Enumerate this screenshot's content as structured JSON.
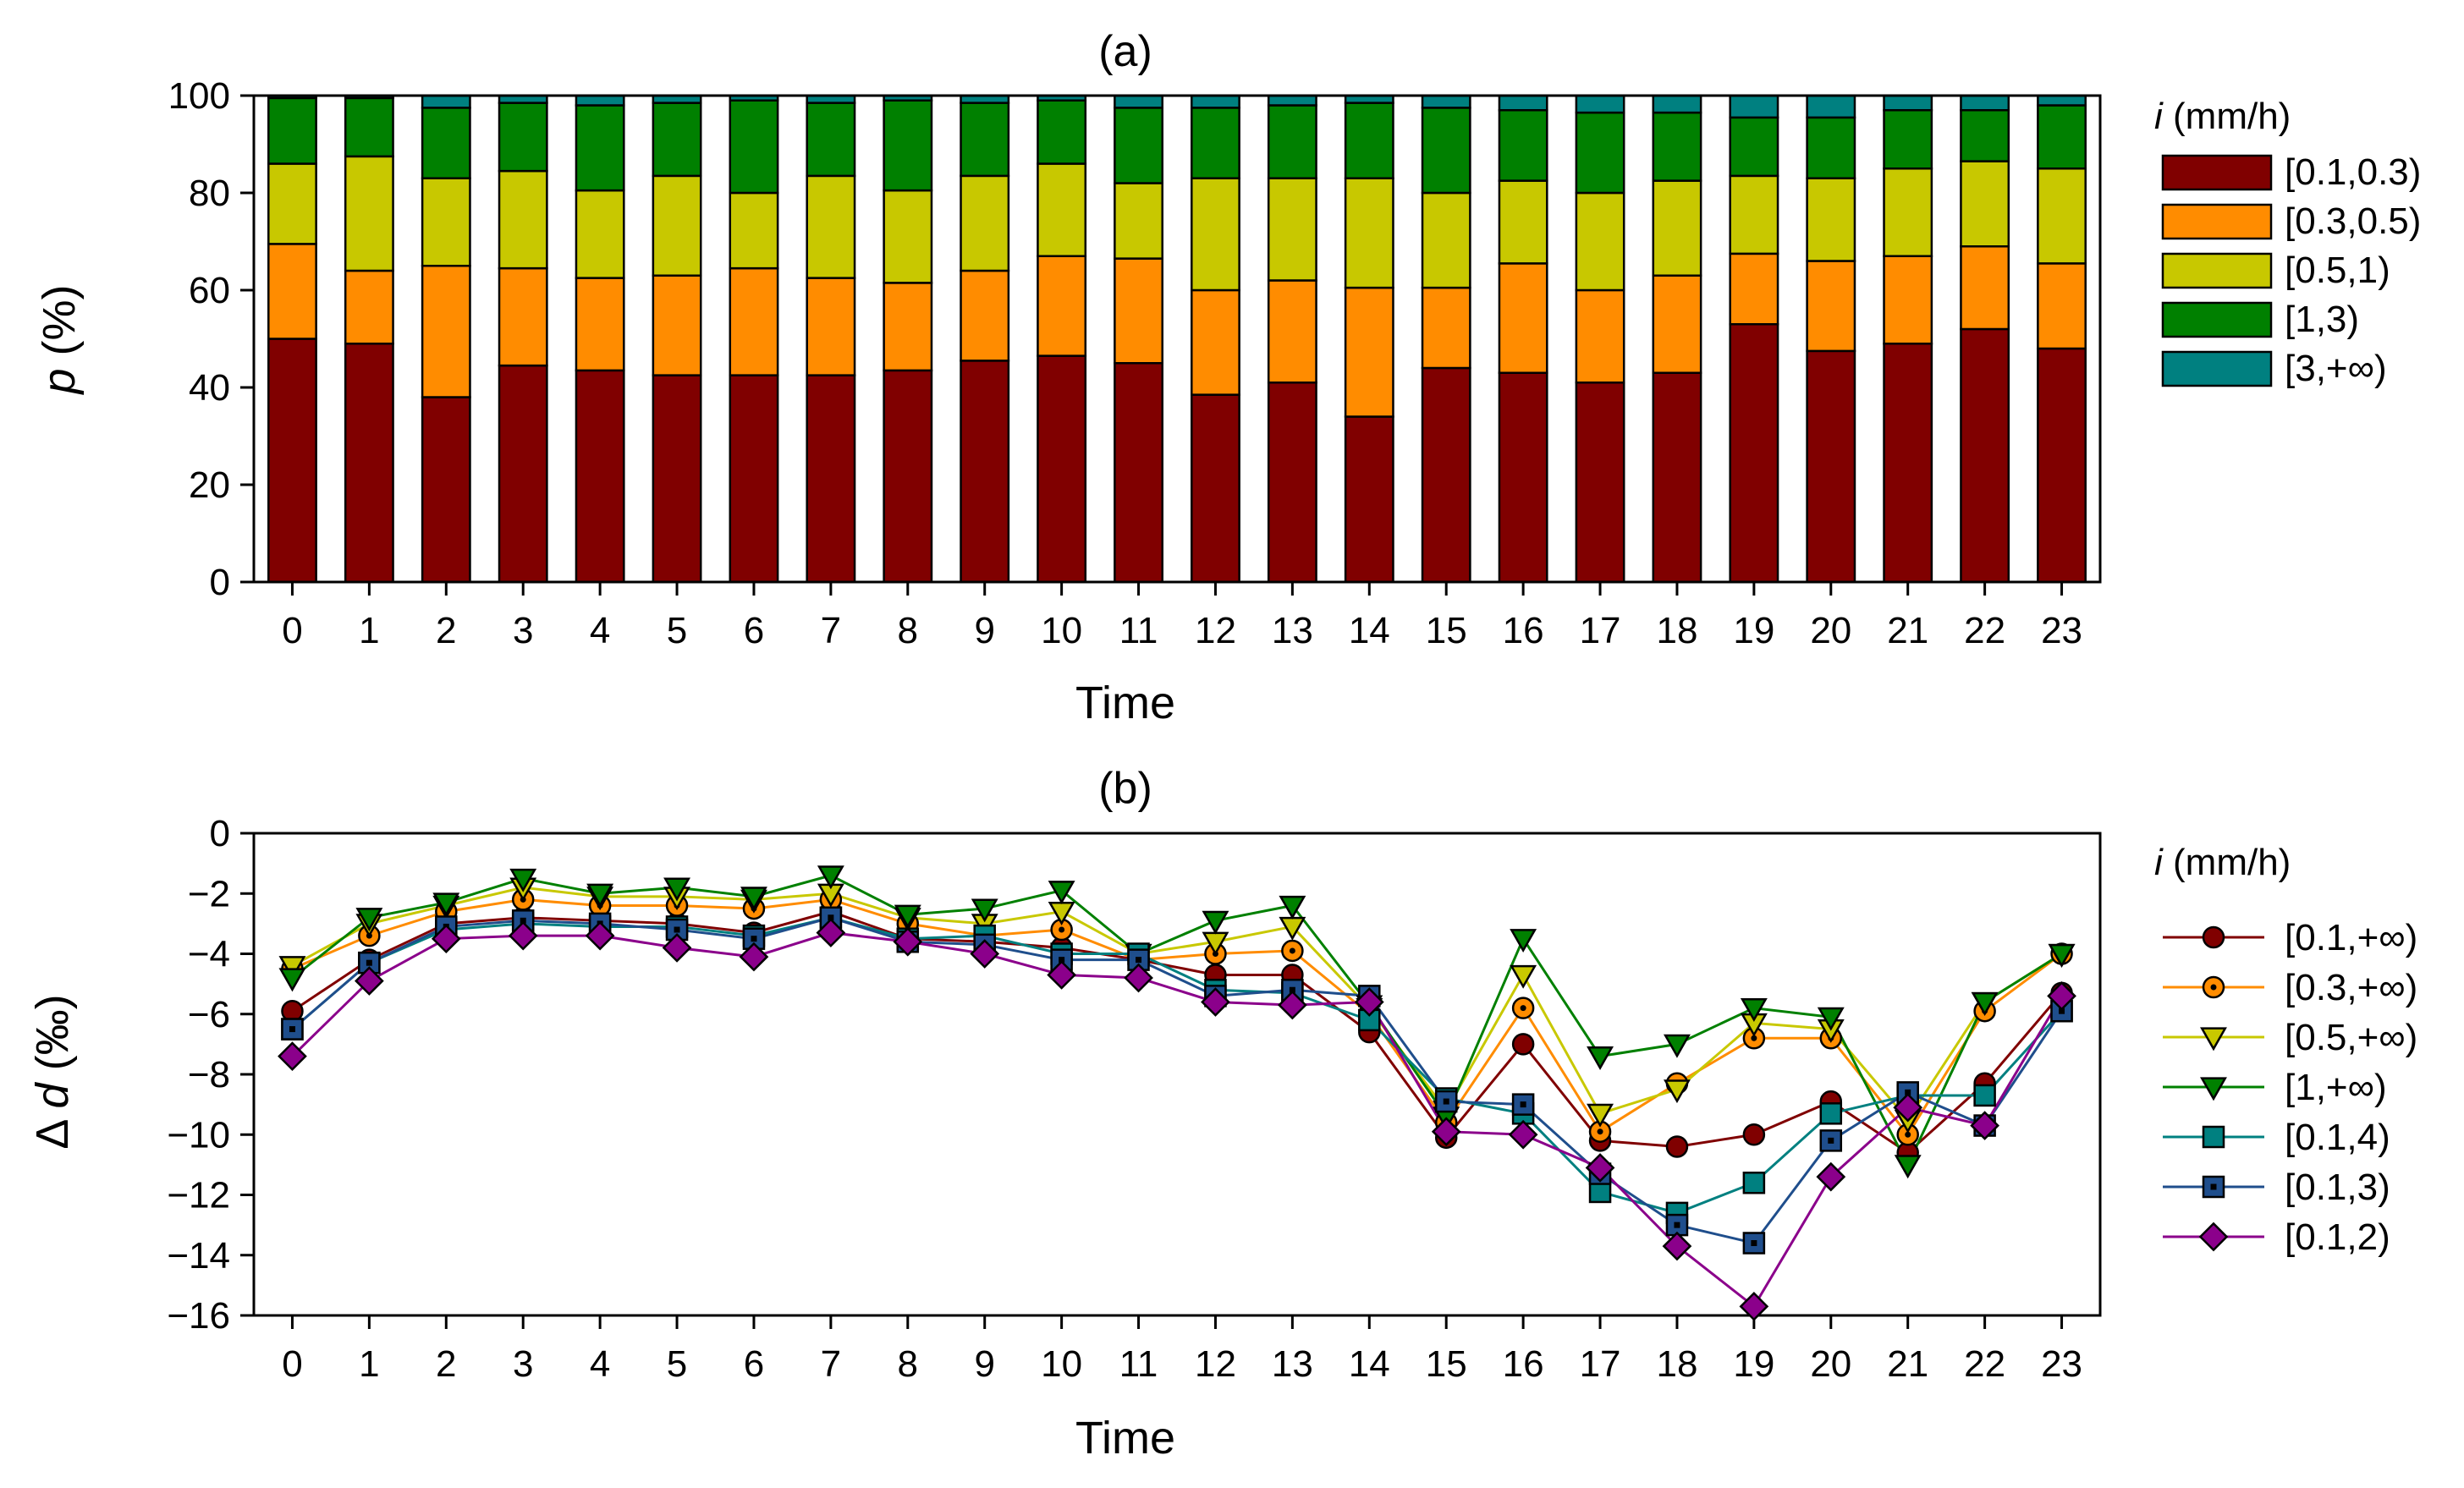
{
  "chart_data": [
    {
      "type": "bar",
      "stacked": true,
      "title": "(a)",
      "xlabel": "Time",
      "ylabel_italic": "p",
      "ylabel_unit": "(%)",
      "ylim": [
        0,
        100
      ],
      "yticks": [
        0,
        20,
        40,
        60,
        80,
        100
      ],
      "categories": [
        "0",
        "1",
        "2",
        "3",
        "4",
        "5",
        "6",
        "7",
        "8",
        "9",
        "10",
        "11",
        "12",
        "13",
        "14",
        "15",
        "16",
        "17",
        "18",
        "19",
        "20",
        "21",
        "22",
        "23"
      ],
      "legend_title_italic": "i",
      "legend_title_unit": "(mm/h)",
      "legend_position": "right",
      "series": [
        {
          "name": "[0.1,0.3)",
          "color": "#800000",
          "values": [
            50,
            49,
            38,
            44.5,
            43.5,
            42.5,
            42.5,
            42.5,
            43.5,
            45.5,
            46.5,
            45,
            38.5,
            41,
            34,
            44,
            43,
            41,
            43,
            53,
            47.5,
            49,
            52,
            48
          ]
        },
        {
          "name": "[0.3,0.5)",
          "color": "#ff8c00",
          "values": [
            19.5,
            15,
            27,
            20,
            19,
            20.5,
            22,
            20,
            18,
            18.5,
            20.5,
            21.5,
            21.5,
            21,
            26.5,
            16.5,
            22.5,
            19,
            20,
            14.5,
            18.5,
            18,
            17,
            17.5
          ]
        },
        {
          "name": "[0.5,1)",
          "color": "#c8c800",
          "values": [
            16.5,
            23.5,
            18,
            20,
            18,
            20.5,
            15.5,
            21,
            19,
            19.5,
            19,
            15.5,
            23,
            21,
            22.5,
            19.5,
            17,
            20,
            19.5,
            16,
            17,
            18,
            17.5,
            19.5
          ]
        },
        {
          "name": "[1,3)",
          "color": "#008000",
          "values": [
            13.5,
            12,
            14.5,
            14,
            17.5,
            15,
            19,
            15,
            18.5,
            15,
            13,
            15.5,
            14.5,
            15,
            15.5,
            17.5,
            14.5,
            16.5,
            14,
            12,
            12.5,
            12,
            10.5,
            13
          ]
        },
        {
          "name": "[3,+∞)",
          "color": "#008080",
          "values": [
            0.5,
            0.5,
            2.5,
            1.5,
            2,
            1.5,
            1,
            1.5,
            1,
            1.5,
            1,
            2.5,
            2.5,
            2,
            1.5,
            2.5,
            3,
            3.5,
            3.5,
            4.5,
            4.5,
            3,
            3,
            2
          ]
        }
      ]
    },
    {
      "type": "line",
      "title": "(b)",
      "xlabel": "Time",
      "ylabel_prefix": "Δ",
      "ylabel_italic": "d",
      "ylabel_unit": "(‰)",
      "ylim": [
        -16,
        0
      ],
      "yticks": [
        -16,
        -14,
        -12,
        -10,
        -8,
        -6,
        -4,
        -2,
        0
      ],
      "x": [
        "0",
        "1",
        "2",
        "3",
        "4",
        "5",
        "6",
        "7",
        "8",
        "9",
        "10",
        "11",
        "12",
        "13",
        "14",
        "15",
        "16",
        "17",
        "18",
        "19",
        "20",
        "21",
        "22",
        "23"
      ],
      "legend_title_italic": "i",
      "legend_title_unit": "(mm/h)",
      "legend_position": "right",
      "series": [
        {
          "name": "[0.1,+∞)",
          "color": "#800000",
          "marker": "circle",
          "values": [
            -5.9,
            -4.2,
            -3.0,
            -2.8,
            -2.9,
            -3.0,
            -3.3,
            -2.6,
            -3.5,
            -3.6,
            -3.8,
            -4.2,
            -4.7,
            -4.7,
            -6.6,
            -10.1,
            -7.0,
            -10.2,
            -10.4,
            -10.0,
            -8.9,
            -10.6,
            -8.3,
            -5.3
          ]
        },
        {
          "name": "[0.3,+∞)",
          "color": "#ff8c00",
          "marker": "dotted-circle",
          "values": [
            -4.5,
            -3.4,
            -2.6,
            -2.2,
            -2.4,
            -2.4,
            -2.5,
            -2.2,
            -3.0,
            -3.4,
            -3.2,
            -4.2,
            -4.0,
            -3.9,
            -6.0,
            -9.6,
            -5.8,
            -9.9,
            -8.3,
            -6.8,
            -6.8,
            -10.0,
            -5.9,
            -4.0
          ]
        },
        {
          "name": "[0.5,+∞)",
          "color": "#c8c800",
          "marker": "triangle-down",
          "values": [
            -4.4,
            -3.0,
            -2.4,
            -1.8,
            -2.1,
            -2.1,
            -2.2,
            -2.0,
            -2.8,
            -3.0,
            -2.6,
            -4.0,
            -3.6,
            -3.1,
            -5.8,
            -9.2,
            -4.7,
            -9.3,
            -8.5,
            -6.3,
            -6.5,
            -9.5,
            -5.6,
            -4.0
          ]
        },
        {
          "name": "[1,+∞)",
          "color": "#008000",
          "marker": "triangle-down",
          "values": [
            -4.8,
            -2.8,
            -2.3,
            -1.5,
            -2.0,
            -1.8,
            -2.1,
            -1.4,
            -2.7,
            -2.5,
            -1.9,
            -4.0,
            -2.9,
            -2.4,
            -5.7,
            -9.4,
            -3.5,
            -7.4,
            -7.0,
            -5.8,
            -6.1,
            -11.0,
            -5.6,
            -4.0
          ]
        },
        {
          "name": "[0.1,4)",
          "color": "#008080",
          "marker": "square",
          "values": [
            -6.5,
            -4.3,
            -3.2,
            -3.0,
            -3.1,
            -3.1,
            -3.4,
            -2.8,
            -3.5,
            -3.4,
            -4.0,
            -4.0,
            -5.2,
            -5.3,
            -6.2,
            -8.8,
            -9.3,
            -11.9,
            -12.6,
            -11.6,
            -9.3,
            -8.7,
            -8.7,
            -5.9
          ]
        },
        {
          "name": "[0.1,3)",
          "color": "#1f4e8c",
          "marker": "dotted-square",
          "values": [
            -6.5,
            -4.3,
            -3.1,
            -2.9,
            -3.0,
            -3.2,
            -3.5,
            -2.8,
            -3.6,
            -3.7,
            -4.2,
            -4.2,
            -5.4,
            -5.2,
            -5.4,
            -8.9,
            -9.0,
            -11.3,
            -13.0,
            -13.6,
            -10.2,
            -8.6,
            -9.7,
            -5.9
          ]
        },
        {
          "name": "[0.1,2)",
          "color": "#8b008b",
          "marker": "diamond",
          "values": [
            -7.4,
            -4.9,
            -3.5,
            -3.4,
            -3.4,
            -3.8,
            -4.1,
            -3.3,
            -3.6,
            -4.0,
            -4.7,
            -4.8,
            -5.6,
            -5.7,
            -5.6,
            -9.9,
            -10.0,
            -11.1,
            -13.7,
            -15.7,
            -11.4,
            -9.1,
            -9.7,
            -5.4
          ]
        }
      ]
    }
  ]
}
